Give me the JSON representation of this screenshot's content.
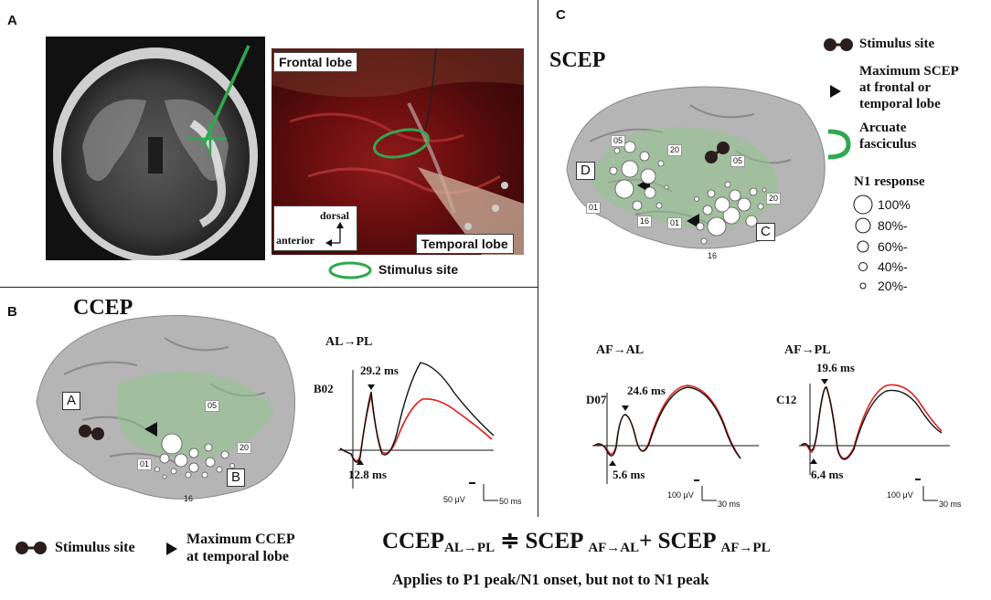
{
  "panels": {
    "a": "A",
    "b": "B",
    "c": "C"
  },
  "panel_a": {
    "photo_frontal": "Frontal lobe",
    "photo_temporal": "Temporal lobe",
    "orient_dorsal": "dorsal",
    "orient_anterior": "anterior",
    "stimulus_site_legend": "Stimulus site"
  },
  "panel_b": {
    "title": "CCEP",
    "box_a": "A",
    "box_b": "B",
    "electrode_05": "05",
    "electrode_20": "20",
    "electrode_01": "01",
    "electrode_16": "16",
    "trace_title": "AL→PL",
    "channel": "B02",
    "peak_label": "29.2 ms",
    "onset_label": "12.8 ms",
    "scale_uv": "50 μV",
    "scale_ms": "50 ms"
  },
  "panel_c": {
    "title": "SCEP",
    "box_d": "D",
    "box_c": "C",
    "electrode_05a": "05",
    "electrode_20a": "20",
    "electrode_01a": "01",
    "electrode_16a": "16",
    "electrode_05b": "05",
    "electrode_20b": "20",
    "electrode_01b": "01",
    "electrode_16b": "16",
    "legend_stimulus": "Stimulus site",
    "legend_max_line1": "Maximum SCEP",
    "legend_max_line2": "at frontal or",
    "legend_max_line3": "temporal lobe",
    "legend_af_line1": "Arcuate",
    "legend_af_line2": "fasciculus",
    "n1_title": "N1 response",
    "n1_sizes": [
      "100%",
      "80%-",
      "60%-",
      "40%-",
      "20%-"
    ],
    "trace1_title": "AF→AL",
    "trace1_channel": "D07",
    "trace1_peak": "24.6 ms",
    "trace1_onset": "5.6 ms",
    "trace1_scale_uv": "100 μV",
    "trace1_scale_ms": "30 ms",
    "trace2_title": "AF→PL",
    "trace2_channel": "C12",
    "trace2_peak": "19.6 ms",
    "trace2_onset": "6.4 ms",
    "trace2_scale_uv": "100 μV",
    "trace2_scale_ms": "30 ms"
  },
  "bottom": {
    "legend_stimulus": "Stimulus site",
    "legend_max_line1": "Maximum CCEP",
    "legend_max_line2": "at temporal lobe",
    "eq_ccep": "CCEP",
    "eq_ccep_sub": "AL→PL",
    "eq_approx": "≑",
    "eq_scep1": "SCEP",
    "eq_scep1_sub": "AF→AL",
    "eq_plus": "+",
    "eq_scep2": "SCEP",
    "eq_scep2_sub": "AF→PL",
    "note": "Applies to P1 peak/N1 onset, but not to N1 peak"
  },
  "colors": {
    "tract_green": "#2fa84f",
    "trace_red": "#e0201b",
    "trace_black": "#111111",
    "brain_gray": "#b5b5b5",
    "overlay_green": "#8fc48a"
  }
}
